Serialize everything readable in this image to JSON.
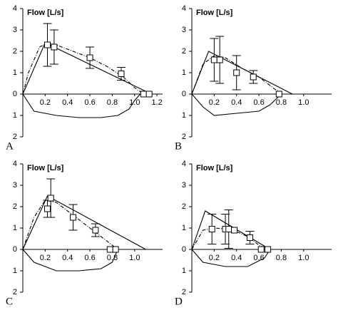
{
  "chart_data": [
    {
      "type": "line",
      "panel_label": "A",
      "title": "Flow [L/s]",
      "xlim": [
        0,
        1.25
      ],
      "xticks": [
        0.2,
        0.4,
        0.6,
        0.8,
        {
          "value": 1,
          "label": "1.0"
        },
        1.2
      ],
      "ylim": [
        -2,
        4
      ],
      "yticks": [
        4,
        3,
        2,
        1,
        0,
        {
          "value": -1,
          "label": "1"
        },
        {
          "value": -2,
          "label": "2"
        }
      ],
      "series": [
        {
          "color": "#000",
          "dash": false,
          "x": [
            0,
            0.2,
            1.15
          ],
          "values": [
            0,
            2.4,
            0
          ]
        },
        {
          "color": "#000",
          "dash": true,
          "x": [
            0,
            0.05,
            0.15,
            0.22,
            0.3,
            0.45,
            0.6,
            0.75,
            0.9,
            1.0,
            1.08
          ],
          "values": [
            0,
            1.0,
            2.2,
            2.4,
            2.3,
            2.0,
            1.7,
            1.3,
            0.8,
            0.3,
            0
          ]
        },
        {
          "color": "#000",
          "dash": false,
          "x": [
            0,
            0.1,
            0.3,
            0.5,
            0.7,
            0.85,
            0.95,
            1.0,
            1.05
          ],
          "values": [
            0,
            -0.8,
            -1.0,
            -1.1,
            -1.1,
            -1.0,
            -0.7,
            -0.3,
            0
          ]
        },
        {
          "color": "#000",
          "marker": "square",
          "x": [
            0.22,
            0.28,
            0.6,
            0.88,
            1.08,
            1.13
          ],
          "values": [
            2.3,
            2.2,
            1.7,
            0.95,
            0,
            0
          ],
          "errors": [
            1.0,
            0.8,
            0.5,
            0.3,
            0,
            0
          ]
        }
      ]
    },
    {
      "type": "line",
      "panel_label": "B",
      "title": "Flow [L/s]",
      "xlim": [
        0,
        1.25
      ],
      "xticks": [
        0.2,
        0.4,
        0.6,
        0.8,
        {
          "value": 1,
          "label": "1.0"
        }
      ],
      "ylim": [
        -2,
        4
      ],
      "yticks": [
        4,
        3,
        2,
        1,
        0,
        {
          "value": -1,
          "label": "1"
        },
        {
          "value": -2,
          "label": "2"
        }
      ],
      "series": [
        {
          "color": "#000",
          "dash": false,
          "x": [
            0,
            0.15,
            0.9
          ],
          "values": [
            0,
            2.0,
            0
          ]
        },
        {
          "color": "#000",
          "dash": true,
          "x": [
            0,
            0.1,
            0.2,
            0.3,
            0.45,
            0.6,
            0.75,
            0.82
          ],
          "values": [
            0,
            1.4,
            1.8,
            1.7,
            1.2,
            0.8,
            0.2,
            0
          ]
        },
        {
          "color": "#000",
          "dash": false,
          "x": [
            0,
            0.1,
            0.2,
            0.4,
            0.6,
            0.7,
            0.8
          ],
          "values": [
            0,
            -0.6,
            -1.0,
            -0.9,
            -0.8,
            -0.5,
            0
          ]
        },
        {
          "color": "#000",
          "marker": "square",
          "x": [
            0.2,
            0.25,
            0.4,
            0.55,
            0.78
          ],
          "values": [
            1.6,
            1.6,
            1.0,
            0.8,
            0
          ],
          "errors": [
            1.0,
            1.1,
            0.8,
            0.3,
            0
          ]
        }
      ]
    },
    {
      "type": "line",
      "panel_label": "C",
      "title": "Flow [L/s]",
      "xlim": [
        0,
        1.25
      ],
      "xticks": [
        0.2,
        0.4,
        0.6,
        0.8,
        {
          "value": 1,
          "label": "1.0"
        }
      ],
      "ylim": [
        -2,
        4
      ],
      "yticks": [
        4,
        3,
        2,
        1,
        0,
        {
          "value": -1,
          "label": "1"
        },
        {
          "value": -2,
          "label": "2"
        }
      ],
      "series": [
        {
          "color": "#000",
          "dash": false,
          "x": [
            0,
            0.22,
            1.1
          ],
          "values": [
            0,
            2.5,
            0
          ]
        },
        {
          "color": "#000",
          "dash": true,
          "x": [
            0,
            0.1,
            0.2,
            0.3,
            0.45,
            0.6,
            0.75,
            0.85
          ],
          "values": [
            0,
            1.5,
            2.3,
            2.2,
            1.6,
            1.0,
            0.4,
            0
          ]
        },
        {
          "color": "#000",
          "dash": false,
          "x": [
            0,
            0.1,
            0.3,
            0.5,
            0.7,
            0.8,
            0.85
          ],
          "values": [
            0,
            -0.6,
            -1.0,
            -1.0,
            -0.9,
            -0.6,
            0
          ]
        },
        {
          "color": "#000",
          "marker": "square",
          "x": [
            0.22,
            0.25,
            0.45,
            0.65,
            0.78,
            0.83
          ],
          "values": [
            1.9,
            2.4,
            1.5,
            0.9,
            0,
            0
          ],
          "errors": [
            0.4,
            0.9,
            0.6,
            0.3,
            0,
            0
          ]
        }
      ]
    },
    {
      "type": "line",
      "panel_label": "D",
      "title": "Flow [L/s]",
      "xlim": [
        0,
        1.25
      ],
      "xticks": [
        0.2,
        0.4,
        0.6,
        0.8,
        {
          "value": 1,
          "label": "1.0"
        }
      ],
      "ylim": [
        -2,
        4
      ],
      "yticks": [
        4,
        3,
        2,
        1,
        0,
        {
          "value": -1,
          "label": "1"
        },
        {
          "value": -2,
          "label": "2"
        }
      ],
      "series": [
        {
          "color": "#000",
          "dash": false,
          "x": [
            0,
            0.12,
            0.7
          ],
          "values": [
            0,
            1.8,
            0
          ]
        },
        {
          "color": "#000",
          "dash": true,
          "x": [
            0,
            0.1,
            0.2,
            0.35,
            0.5,
            0.6,
            0.7
          ],
          "values": [
            0,
            0.9,
            1.0,
            0.95,
            0.6,
            0.2,
            0
          ]
        },
        {
          "color": "#000",
          "dash": false,
          "x": [
            0,
            0.1,
            0.3,
            0.5,
            0.65,
            0.7
          ],
          "values": [
            0,
            -0.6,
            -0.8,
            -0.8,
            -0.4,
            0
          ]
        },
        {
          "color": "#000",
          "marker": "square",
          "x": [
            0.18,
            0.3,
            0.33,
            0.38,
            0.52,
            0.62,
            0.68
          ],
          "values": [
            0.95,
            0.95,
            0.95,
            0.9,
            0.55,
            0,
            0
          ],
          "errors": [
            0.7,
            0.7,
            0.9,
            0,
            0.3,
            0,
            0
          ]
        }
      ]
    }
  ]
}
